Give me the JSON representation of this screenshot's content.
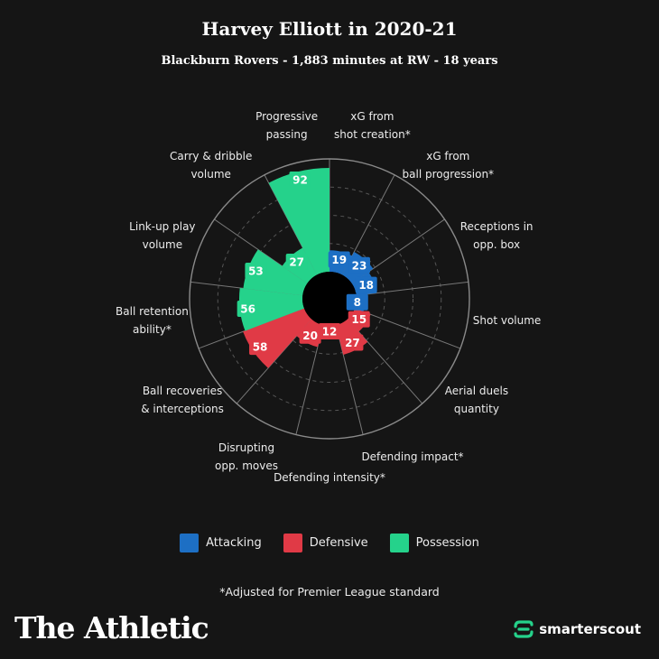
{
  "header": {
    "title": "Harvey Elliott in 2020-21",
    "subtitle": "Blackburn Rovers - 1,883 minutes at RW - 18 years"
  },
  "colors": {
    "attacking": "#1d6fc4",
    "defensive": "#e03a46",
    "possession": "#25d28b",
    "background": "#151515"
  },
  "chart_data": {
    "type": "polar-bar",
    "range": [
      0,
      100
    ],
    "grid": true,
    "legend_position": "bottom",
    "legend": [
      {
        "key": "attacking",
        "label": "Attacking"
      },
      {
        "key": "defensive",
        "label": "Defensive"
      },
      {
        "key": "possession",
        "label": "Possession"
      }
    ],
    "metrics": [
      {
        "label": "xG from shot creation*",
        "value": 19,
        "group": "attacking"
      },
      {
        "label": "xG from ball progression*",
        "value": 23,
        "group": "attacking"
      },
      {
        "label": "Receptions in opp. box",
        "value": 18,
        "group": "attacking"
      },
      {
        "label": "Shot volume",
        "value": 8,
        "group": "attacking"
      },
      {
        "label": "Aerial duels quantity",
        "value": 15,
        "group": "defensive"
      },
      {
        "label": "Defending impact*",
        "value": 27,
        "group": "defensive"
      },
      {
        "label": "Defending intensity*",
        "value": 12,
        "group": "defensive"
      },
      {
        "label": "Disrupting opp. moves",
        "value": 20,
        "group": "defensive"
      },
      {
        "label": "Ball recoveries & interceptions",
        "value": 58,
        "group": "defensive"
      },
      {
        "label": "Ball retention ability*",
        "value": 56,
        "group": "possession"
      },
      {
        "label": "Link-up play volume",
        "value": 53,
        "group": "possession"
      },
      {
        "label": "Carry & dribble volume",
        "value": 27,
        "group": "possession"
      },
      {
        "label": "Progressive passing",
        "value": 92,
        "group": "possession"
      }
    ]
  },
  "axis_labels": [
    {
      "line1": "xG from",
      "line2": "shot creation*"
    },
    {
      "line1": "xG from",
      "line2": "ball progression*"
    },
    {
      "line1": "Receptions in",
      "line2": "opp. box"
    },
    {
      "line1": "Shot volume",
      "line2": ""
    },
    {
      "line1": "Aerial duels",
      "line2": "quantity"
    },
    {
      "line1": "Defending impact*",
      "line2": ""
    },
    {
      "line1": "Defending intensity*",
      "line2": ""
    },
    {
      "line1": "Disrupting",
      "line2": "opp. moves"
    },
    {
      "line1": "Ball recoveries",
      "line2": "& interceptions"
    },
    {
      "line1": "Ball retention",
      "line2": "ability*"
    },
    {
      "line1": "Link-up play",
      "line2": "volume"
    },
    {
      "line1": "Carry & dribble",
      "line2": "volume"
    },
    {
      "line1": "Progressive",
      "line2": "passing"
    }
  ],
  "footnote": "*Adjusted for Premier League standard",
  "brands": {
    "left": "The Athletic",
    "right": "smarterscout"
  }
}
